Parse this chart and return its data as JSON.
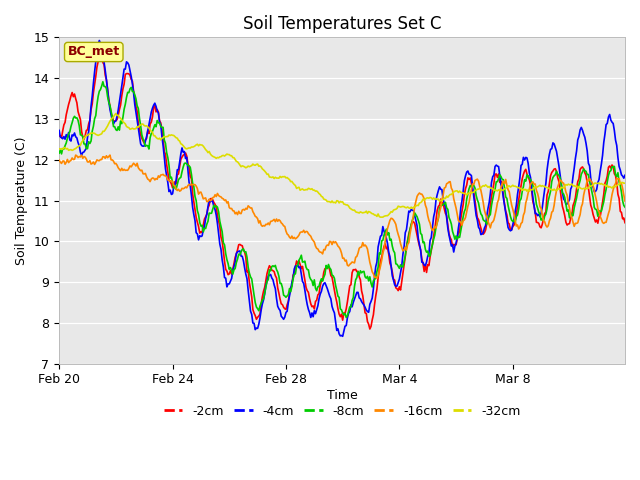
{
  "title": "Soil Temperatures Set C",
  "xlabel": "Time",
  "ylabel": "Soil Temperature (C)",
  "ylim": [
    7.0,
    15.0
  ],
  "yticks": [
    7.0,
    8.0,
    9.0,
    10.0,
    11.0,
    12.0,
    13.0,
    14.0,
    15.0
  ],
  "annotation": "BC_met",
  "bg_color": "#e8e8e8",
  "legend_entries": [
    "-2cm",
    "-4cm",
    "-8cm",
    "-16cm",
    "-32cm"
  ],
  "legend_colors": [
    "#ff0000",
    "#0000ff",
    "#00cc00",
    "#ff8800",
    "#dddd00"
  ],
  "line_width": 1.2,
  "xtick_labels": [
    "Feb 20",
    "Feb 24",
    "Feb 28",
    "Mar 4",
    "Mar 8"
  ],
  "xtick_positions": [
    0,
    96,
    192,
    288,
    384
  ],
  "total_points": 480
}
